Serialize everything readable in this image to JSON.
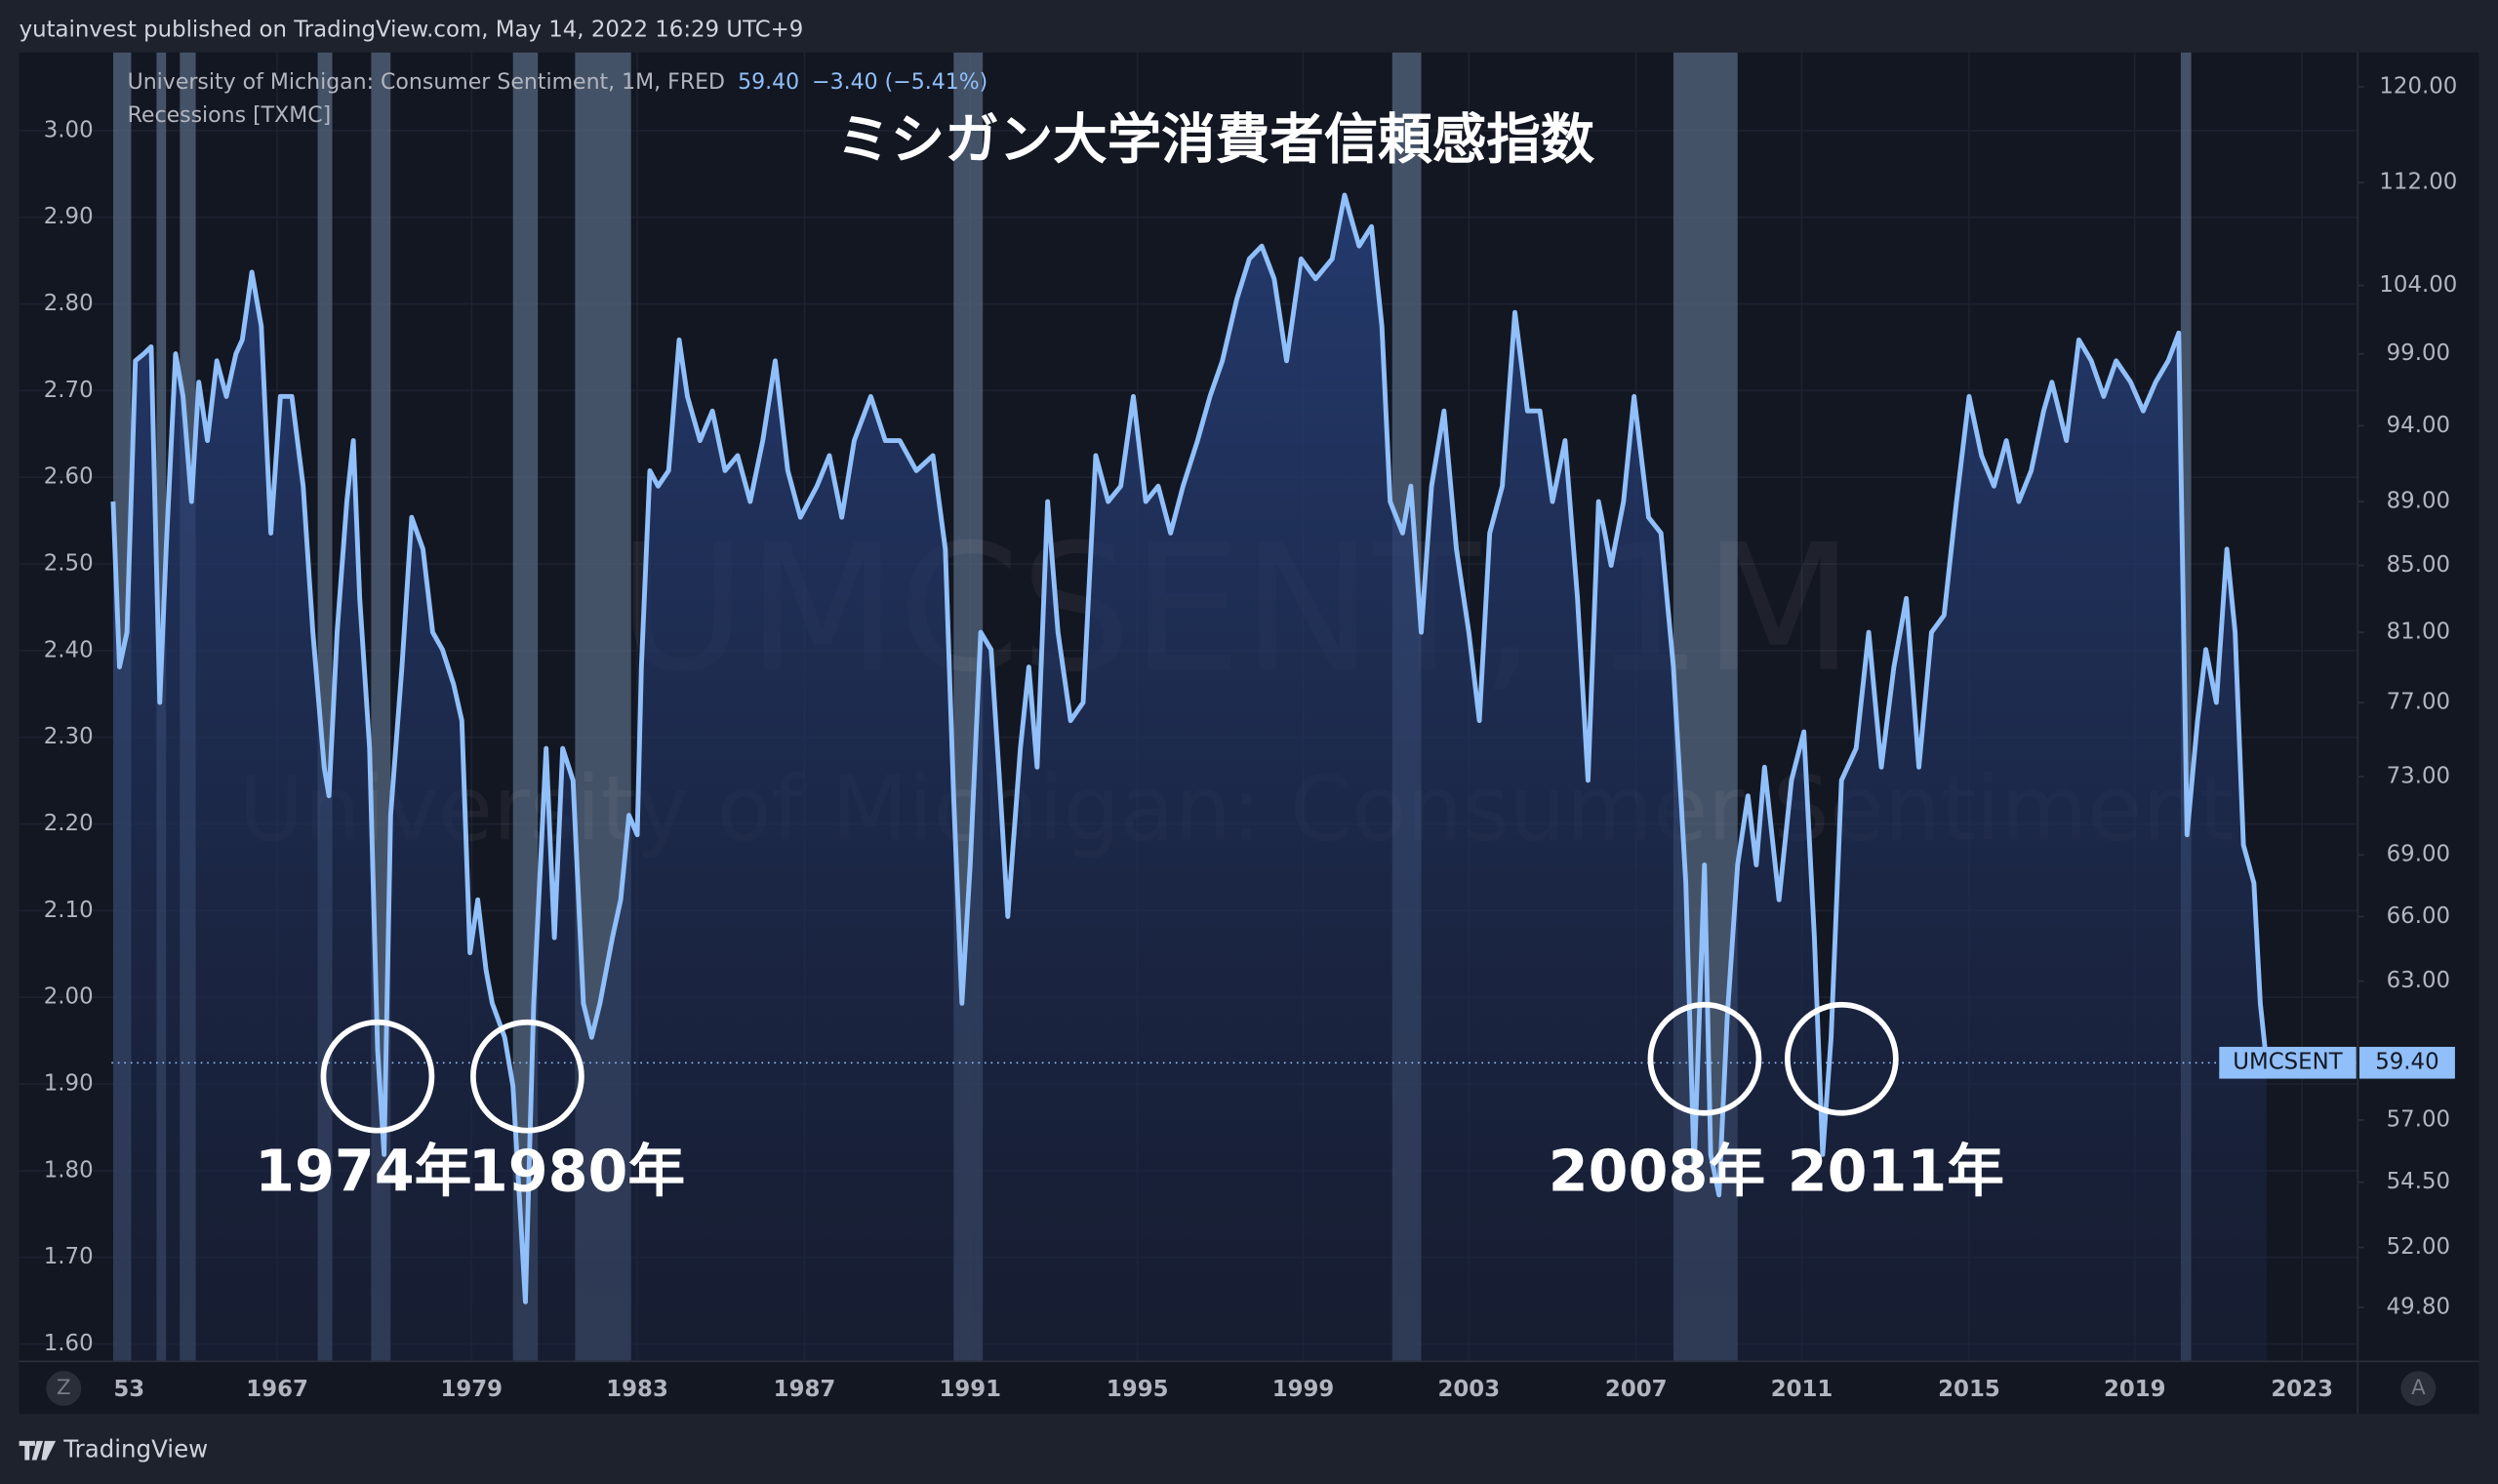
{
  "header": {
    "text": "yutainvest published on TradingView.com, May 14, 2022 16:29 UTC+9"
  },
  "footer": {
    "brand": "TradingView",
    "left_button": "Z",
    "right_button": "A"
  },
  "chart_data": {
    "type": "line",
    "title": "ミシガン大学消費者信頼感指数",
    "legend_text": "University of Michigan: Consumer Sentiment, 1M, FRED",
    "last_value_label": "59.40",
    "change_label": "−3.40 (−5.41%)",
    "watermark": [
      "UMCSENT, 1M",
      "University of Michigan: Consumer Sentiment"
    ],
    "annotations": [
      "1974年",
      "1980年",
      "2008年",
      "2011年"
    ],
    "recessions": {
      "name": "Recessions [TXMC]",
      "color": "#56677f",
      "periods": [
        [
          1951.5,
          1953.2
        ],
        [
          1955.6,
          1956.5
        ],
        [
          1957.8,
          1959.3
        ],
        [
          1969.5,
          1970.4
        ],
        [
          1972.8,
          1974.0
        ],
        [
          1980.0,
          1980.6
        ],
        [
          1981.5,
          1982.85
        ],
        [
          1990.6,
          1991.3
        ],
        [
          2001.15,
          2001.85
        ],
        [
          2007.9,
          2009.45
        ],
        [
          2020.1,
          2020.35
        ]
      ]
    },
    "x": [
      1951.5,
      1952.1,
      1952.8,
      1953.6,
      1954.4,
      1955.1,
      1955.9,
      1956.5,
      1957.4,
      1958.1,
      1958.9,
      1959.6,
      1960.4,
      1961.3,
      1962.2,
      1963.1,
      1963.7,
      1964.6,
      1965.5,
      1966.4,
      1967.2,
      1967.9,
      1968.6,
      1969.2,
      1969.9,
      1970.2,
      1970.7,
      1971.3,
      1971.7,
      1972.1,
      1972.7,
      1973.2,
      1973.6,
      1974.0,
      1974.7,
      1975.3,
      1976.0,
      1976.6,
      1977.2,
      1977.9,
      1978.4,
      1978.9,
      1979.15,
      1979.35,
      1979.5,
      1979.8,
      1980.0,
      1980.3,
      1980.5,
      1980.8,
      1981.0,
      1981.2,
      1981.45,
      1981.7,
      1981.9,
      1982.1,
      1982.4,
      1982.6,
      1982.8,
      1983.0,
      1983.1,
      1983.3,
      1983.5,
      1983.75,
      1984.0,
      1984.2,
      1984.5,
      1984.8,
      1985.1,
      1985.4,
      1985.7,
      1986.0,
      1986.3,
      1986.6,
      1986.9,
      1987.3,
      1987.6,
      1987.9,
      1988.2,
      1988.6,
      1988.95,
      1989.3,
      1989.7,
      1990.1,
      1990.4,
      1990.6,
      1990.8,
      1991.0,
      1991.25,
      1991.5,
      1991.7,
      1991.9,
      1992.2,
      1992.4,
      1992.6,
      1992.85,
      1993.1,
      1993.4,
      1993.7,
      1994.0,
      1994.3,
      1994.6,
      1994.9,
      1995.2,
      1995.5,
      1995.8,
      1996.1,
      1996.45,
      1996.75,
      1997.05,
      1997.4,
      1997.7,
      1998.0,
      1998.3,
      1998.6,
      1998.95,
      1999.3,
      1999.7,
      2000.0,
      2000.35,
      2000.65,
      2000.9,
      2001.1,
      2001.4,
      2001.6,
      2001.85,
      2002.1,
      2002.4,
      2002.7,
      2003.0,
      2003.25,
      2003.5,
      2003.8,
      2004.1,
      2004.4,
      2004.7,
      2005.0,
      2005.3,
      2005.6,
      2005.85,
      2006.1,
      2006.4,
      2006.7,
      2006.95,
      2007.3,
      2007.6,
      2007.9,
      2008.2,
      2008.4,
      2008.65,
      2008.8,
      2009.0,
      2009.2,
      2009.45,
      2009.7,
      2009.9,
      2010.1,
      2010.45,
      2010.75,
      2011.05,
      2011.3,
      2011.5,
      2011.7,
      2011.95,
      2012.3,
      2012.6,
      2012.9,
      2013.2,
      2013.5,
      2013.8,
      2014.1,
      2014.4,
      2014.7,
      2015.0,
      2015.3,
      2015.6,
      2015.9,
      2016.2,
      2016.5,
      2016.8,
      2017.0,
      2017.35,
      2017.65,
      2017.95,
      2018.25,
      2018.55,
      2018.9,
      2019.2,
      2019.5,
      2019.8,
      2020.05,
      2020.25,
      2020.5,
      2020.7,
      2020.95,
      2021.2,
      2021.4,
      2021.6,
      2021.85,
      2022.0,
      2022.15
    ],
    "series": [
      {
        "name": "UMCSENT",
        "color": "#90bff9",
        "axis": "y2",
        "values": [
          89,
          79,
          81,
          98.5,
          99,
          99.5,
          77,
          86,
          99,
          96,
          89,
          97,
          93,
          98.5,
          96,
          99,
          100,
          105,
          101,
          87,
          96,
          96,
          90,
          81,
          73.5,
          72,
          81,
          89,
          93,
          83,
          74.5,
          60,
          55.6,
          71,
          79,
          88,
          86,
          81,
          80,
          78,
          76,
          64.3,
          66.8,
          63.5,
          62,
          60.5,
          58.4,
          50,
          62,
          74.5,
          65,
          74.5,
          72.8,
          62,
          60.5,
          62,
          65,
          66.8,
          71,
          70,
          79,
          91,
          90,
          91,
          100,
          96,
          93,
          95,
          91,
          92,
          89,
          93,
          98.5,
          91,
          88,
          90,
          92,
          88,
          93,
          96,
          93,
          93,
          91,
          92,
          86,
          72,
          62,
          68.5,
          81,
          80,
          72.8,
          66,
          74.5,
          79,
          73.5,
          89,
          81,
          76,
          77,
          92,
          89,
          90,
          96,
          89,
          90,
          87,
          90,
          93,
          96,
          98.5,
          103,
          106,
          107,
          104.5,
          98.5,
          106,
          104.5,
          106,
          111,
          107,
          108.5,
          101,
          89,
          87,
          90,
          81,
          90,
          95,
          86,
          81,
          76,
          87,
          90,
          102,
          95,
          95,
          89,
          93,
          83,
          72.8,
          89,
          85,
          89,
          96,
          88,
          87,
          79,
          67.6,
          55,
          68.5,
          55.6,
          54,
          61.4,
          68.5,
          72,
          68.5,
          73.5,
          66.8,
          72.8,
          75.4,
          65,
          55.6,
          60.5,
          72.8,
          74.5,
          81,
          73.5,
          79,
          83,
          73.5,
          81,
          82,
          89,
          96,
          92,
          90,
          93,
          89,
          91,
          95,
          97,
          93,
          100,
          98.5,
          96,
          98.5,
          97,
          95,
          97,
          98.5,
          100.5,
          70,
          76,
          80,
          77,
          86,
          81,
          69.5,
          67.6,
          62,
          59.4
        ]
      }
    ],
    "xlim": [
      1942.6,
      2024.3
    ],
    "xticks": [
      {
        "value": 1953,
        "label": "53"
      },
      1967,
      1979,
      1983,
      1987,
      1991,
      1995,
      1999,
      2003,
      2007,
      2011,
      2015,
      2019,
      2023
    ],
    "ylim": [
      1.58,
      3.09
    ],
    "yticks": [
      {
        "value": 1.6,
        "label": "1.60"
      },
      {
        "value": 1.7,
        "label": "1.70"
      },
      {
        "value": 1.8,
        "label": "1.80"
      },
      {
        "value": 1.9,
        "label": "1.90"
      },
      {
        "value": 2.0,
        "label": "2.00"
      },
      {
        "value": 2.1,
        "label": "2.10"
      },
      {
        "value": 2.2,
        "label": "2.20"
      },
      {
        "value": 2.3,
        "label": "2.30"
      },
      {
        "value": 2.4,
        "label": "2.40"
      },
      {
        "value": 2.5,
        "label": "2.50"
      },
      {
        "value": 2.6,
        "label": "2.60"
      },
      {
        "value": 2.7,
        "label": "2.70"
      },
      {
        "value": 2.8,
        "label": "2.80"
      },
      {
        "value": 2.9,
        "label": "2.90"
      },
      {
        "value": 3.0,
        "label": "3.00"
      }
    ],
    "y2lim": [
      47.9,
      123.0
    ],
    "y2scale": "log",
    "y2ticks": [
      {
        "value": 120,
        "label": "120.00"
      },
      {
        "value": 112,
        "label": "112.00"
      },
      {
        "value": 104,
        "label": "104.00"
      },
      {
        "value": 99,
        "label": "99.00"
      },
      {
        "value": 94,
        "label": "94.00"
      },
      {
        "value": 89,
        "label": "89.00"
      },
      {
        "value": 85,
        "label": "85.00"
      },
      {
        "value": 81,
        "label": "81.00"
      },
      {
        "value": 77,
        "label": "77.00"
      },
      {
        "value": 73,
        "label": "73.00"
      },
      {
        "value": 69,
        "label": "69.00"
      },
      {
        "value": 66,
        "label": "66.00"
      },
      {
        "value": 63,
        "label": "63.00"
      },
      {
        "value": 57,
        "label": "57.00"
      },
      {
        "value": 54.5,
        "label": "54.50"
      },
      {
        "value": 52,
        "label": "52.00"
      },
      {
        "value": 49.8,
        "label": "49.80"
      }
    ],
    "grid": true
  }
}
